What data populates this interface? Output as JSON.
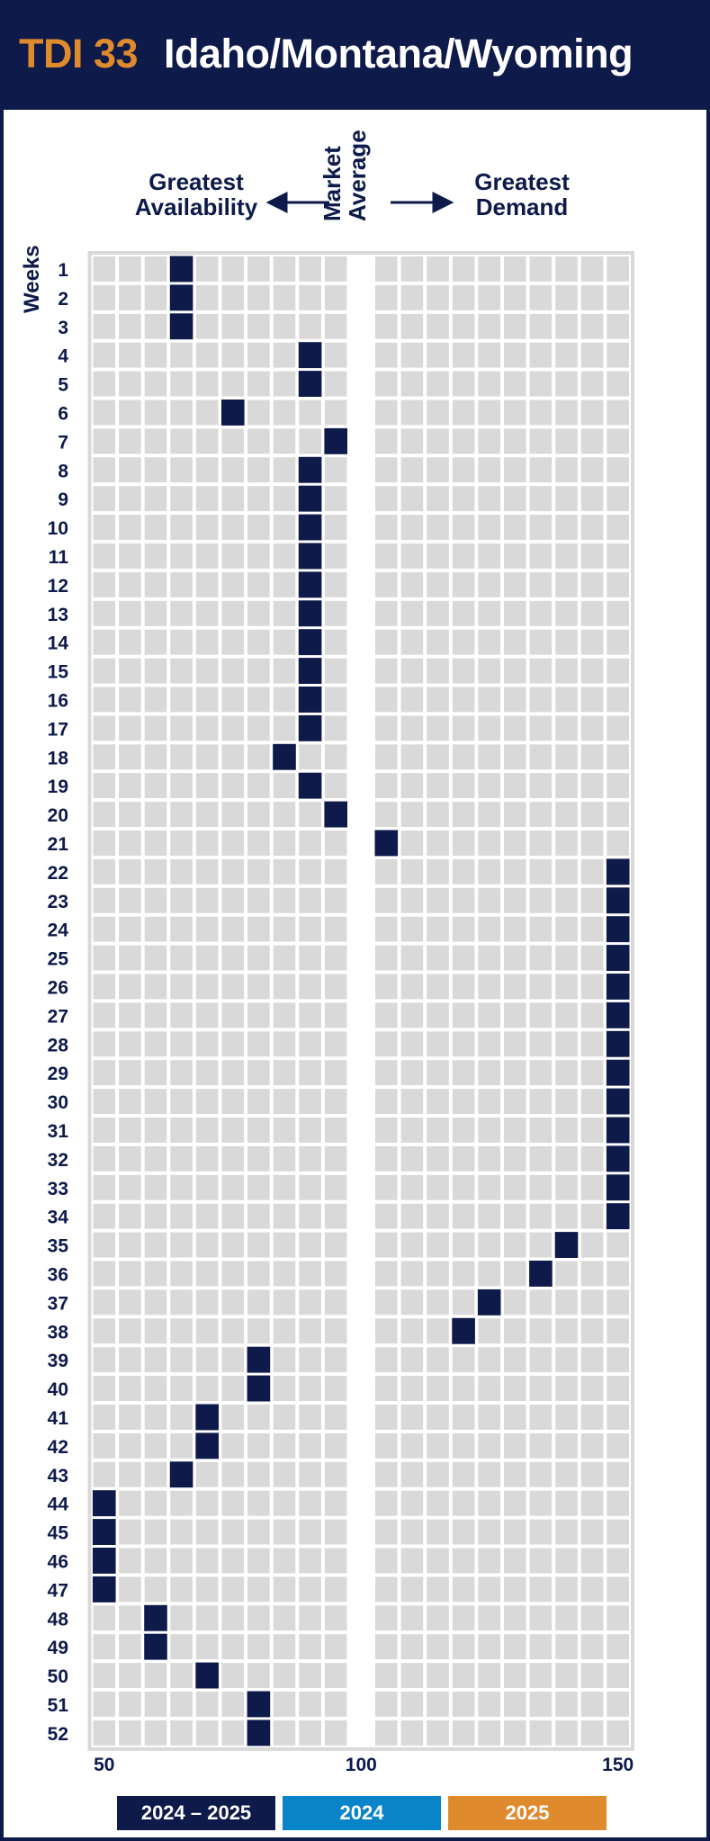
{
  "header": {
    "code": "TDI 33",
    "region": "Idaho/Montana/Wyoming"
  },
  "axis_headers": {
    "left": "Greatest Availability",
    "middle": "Market Average",
    "right": "Greatest Demand",
    "y_label": "Weeks"
  },
  "legend": [
    {
      "label": "2024 – 2025",
      "color": "#0d1a4a"
    },
    {
      "label": "2024",
      "color": "#0a84c8"
    },
    {
      "label": "2025",
      "color": "#e08a2e"
    }
  ],
  "colors": {
    "marker": "#0d1a4a",
    "cell": "#d9d9d9",
    "panel": "#d9d9d9",
    "grid_line": "#ffffff",
    "text": "#0d1a4a"
  },
  "chart_data": {
    "type": "scatter",
    "title": "TDI 33 Idaho/Montana/Wyoming",
    "ylabel": "Weeks",
    "xlim": [
      50,
      150
    ],
    "x_ticks": [
      50,
      100,
      150
    ],
    "x_step": 5,
    "gap_at": 100,
    "grid": true,
    "series": [
      {
        "name": "2024 – 2025",
        "points": [
          {
            "week": 1,
            "value": 65
          },
          {
            "week": 2,
            "value": 65
          },
          {
            "week": 3,
            "value": 65
          },
          {
            "week": 4,
            "value": 90
          },
          {
            "week": 5,
            "value": 90
          },
          {
            "week": 6,
            "value": 75
          },
          {
            "week": 7,
            "value": 95
          },
          {
            "week": 8,
            "value": 90
          },
          {
            "week": 9,
            "value": 90
          },
          {
            "week": 10,
            "value": 90
          },
          {
            "week": 11,
            "value": 90
          },
          {
            "week": 12,
            "value": 90
          },
          {
            "week": 13,
            "value": 90
          },
          {
            "week": 14,
            "value": 90
          },
          {
            "week": 15,
            "value": 90
          },
          {
            "week": 16,
            "value": 90
          },
          {
            "week": 17,
            "value": 90
          },
          {
            "week": 18,
            "value": 85
          },
          {
            "week": 19,
            "value": 90
          },
          {
            "week": 20,
            "value": 95
          },
          {
            "week": 21,
            "value": 105
          },
          {
            "week": 22,
            "value": 150
          },
          {
            "week": 23,
            "value": 150
          },
          {
            "week": 24,
            "value": 150
          },
          {
            "week": 25,
            "value": 150
          },
          {
            "week": 26,
            "value": 150
          },
          {
            "week": 27,
            "value": 150
          },
          {
            "week": 28,
            "value": 150
          },
          {
            "week": 29,
            "value": 150
          },
          {
            "week": 30,
            "value": 150
          },
          {
            "week": 31,
            "value": 150
          },
          {
            "week": 32,
            "value": 150
          },
          {
            "week": 33,
            "value": 150
          },
          {
            "week": 34,
            "value": 150
          },
          {
            "week": 35,
            "value": 140
          },
          {
            "week": 36,
            "value": 135
          },
          {
            "week": 37,
            "value": 125
          },
          {
            "week": 38,
            "value": 120
          },
          {
            "week": 39,
            "value": 80
          },
          {
            "week": 40,
            "value": 80
          },
          {
            "week": 41,
            "value": 70
          },
          {
            "week": 42,
            "value": 70
          },
          {
            "week": 43,
            "value": 65
          },
          {
            "week": 44,
            "value": 50
          },
          {
            "week": 45,
            "value": 50
          },
          {
            "week": 46,
            "value": 50
          },
          {
            "week": 47,
            "value": 50
          },
          {
            "week": 48,
            "value": 60
          },
          {
            "week": 49,
            "value": 60
          },
          {
            "week": 50,
            "value": 70
          },
          {
            "week": 51,
            "value": 80
          },
          {
            "week": 52,
            "value": 80
          }
        ]
      }
    ]
  }
}
